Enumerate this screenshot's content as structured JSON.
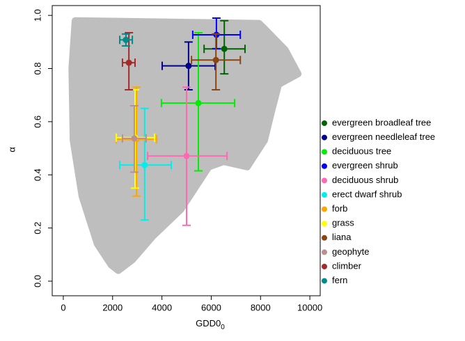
{
  "chart_data": {
    "type": "scatter",
    "xlabel": "GDD0",
    "xlabel_subscript": "0",
    "ylabel": "α",
    "xlim": [
      -450,
      10420
    ],
    "ylim": [
      -0.055,
      1.037
    ],
    "xticks": [
      0,
      2000,
      4000,
      6000,
      8000,
      10000
    ],
    "yticks": [
      {
        "value": 0,
        "label": "0.0"
      },
      0.2,
      0.4,
      0.6,
      0.8,
      {
        "value": 1,
        "label": "1.0"
      }
    ],
    "cloud": {
      "color": "#bebebe",
      "x": [
        480,
        7940,
        8160,
        9000,
        9520,
        8730,
        8450,
        8160,
        7460,
        6500,
        5900,
        4770,
        3640,
        2800,
        2230,
        1950,
        1380,
        760,
        400,
        350
      ],
      "y": [
        0.98,
        0.97,
        0.95,
        0.87,
        0.78,
        0.74,
        0.64,
        0.53,
        0.43,
        0.45,
        0.43,
        0.27,
        0.17,
        0.08,
        0.04,
        0.06,
        0.14,
        0.32,
        0.53,
        0.8
      ]
    },
    "series": [
      {
        "name": "evergreen broadleaf tree",
        "color": "#006400",
        "x": [
          6530
        ],
        "y": [
          0.874
        ],
        "x_low": [
          5710
        ],
        "x_high": [
          7370
        ],
        "y_low": [
          0.78
        ],
        "y_high": [
          0.98
        ]
      },
      {
        "name": "evergreen needleleaf tree",
        "color": "#00008b",
        "x": [
          5080
        ],
        "y": [
          0.81
        ],
        "x_low": [
          4010
        ],
        "x_high": [
          6160
        ],
        "y_low": [
          0.72
        ],
        "y_high": [
          0.9
        ]
      },
      {
        "name": "deciduous tree",
        "color": "#00ee00",
        "x": [
          5480
        ],
        "y": [
          0.67
        ],
        "x_low": [
          3980
        ],
        "x_high": [
          6950
        ],
        "y_low": [
          0.415
        ],
        "y_high": [
          0.935
        ]
      },
      {
        "name": "evergreen shrub",
        "color": "#0000ff",
        "x": [
          6210
        ],
        "y": [
          0.927
        ],
        "x_low": [
          5250
        ],
        "x_high": [
          7180
        ],
        "y_low": [
          0.875
        ],
        "y_high": [
          0.99
        ]
      },
      {
        "name": "deciduous shrub",
        "color": "#ff69b4",
        "x": [
          5000
        ],
        "y": [
          0.471
        ],
        "x_low": [
          3420
        ],
        "x_high": [
          6640
        ],
        "y_low": [
          0.21
        ],
        "y_high": [
          0.73
        ]
      },
      {
        "name": "erect dwarf shrub",
        "color": "#00eeee",
        "x": [
          3300
        ],
        "y": [
          0.437
        ],
        "x_low": [
          2290
        ],
        "x_high": [
          4380
        ],
        "y_low": [
          0.23
        ],
        "y_high": [
          0.65
        ]
      },
      {
        "name": "forb",
        "color": "#ffa500",
        "x": [
          2970
        ],
        "y": [
          0.534
        ],
        "x_low": [
          2150
        ],
        "x_high": [
          3790
        ],
        "y_low": [
          0.32
        ],
        "y_high": [
          0.73
        ]
      },
      {
        "name": "grass",
        "color": "#ffff00",
        "x": [
          2910
        ],
        "y": [
          0.54
        ],
        "x_low": [
          2150
        ],
        "x_high": [
          3700
        ],
        "y_low": [
          0.35
        ],
        "y_high": [
          0.72
        ]
      },
      {
        "name": "liana",
        "color": "#8b4513",
        "x": [
          6190
        ],
        "y": [
          0.832
        ],
        "x_low": [
          5200
        ],
        "x_high": [
          7180
        ],
        "y_low": [
          0.72
        ],
        "y_high": [
          0.93
        ]
      },
      {
        "name": "geophyte",
        "color": "#bc8f8f",
        "x": [
          2880
        ],
        "y": [
          0.537
        ],
        "x_low": [
          2400
        ],
        "x_high": [
          3360
        ],
        "y_low": [
          0.41
        ],
        "y_high": [
          0.66
        ]
      },
      {
        "name": "climber",
        "color": "#a52a2a",
        "x": [
          2660
        ],
        "y": [
          0.822
        ],
        "x_low": [
          2400
        ],
        "x_high": [
          2910
        ],
        "y_low": [
          0.72
        ],
        "y_high": [
          0.935
        ]
      },
      {
        "name": "fern",
        "color": "#008b8b",
        "x": [
          2540
        ],
        "y": [
          0.908
        ],
        "x_low": [
          2290
        ],
        "x_high": [
          2800
        ],
        "y_low": [
          0.885
        ],
        "y_high": [
          0.93
        ]
      }
    ]
  }
}
